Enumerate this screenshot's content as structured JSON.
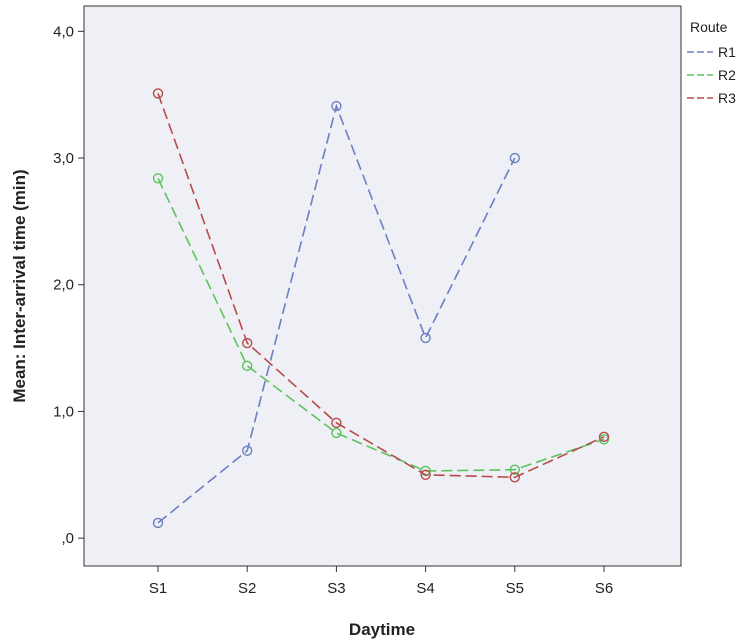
{
  "chart_data": {
    "type": "line",
    "xlabel": "Daytime",
    "ylabel": "Mean: Inter-arrival time (min)",
    "categories": [
      "S1",
      "S2",
      "S3",
      "S4",
      "S5",
      "S6"
    ],
    "ylim": [
      -0.22,
      4.2
    ],
    "yticks": [
      {
        "value": 0,
        "label": ",0"
      },
      {
        "value": 1,
        "label": "1,0"
      },
      {
        "value": 2,
        "label": "2,0"
      },
      {
        "value": 3,
        "label": "3,0"
      },
      {
        "value": 4,
        "label": "4,0"
      }
    ],
    "grid": false,
    "legend": {
      "title": "Route",
      "position": "right"
    },
    "plot_background": "#eef0f5",
    "series": [
      {
        "name": "R1",
        "color": "#6b7fc4",
        "values": [
          0.12,
          0.69,
          3.41,
          1.58,
          3.0,
          null
        ]
      },
      {
        "name": "R2",
        "color": "#5cc45c",
        "values": [
          2.84,
          1.36,
          0.83,
          0.53,
          0.54,
          0.78
        ]
      },
      {
        "name": "R3",
        "color": "#b84a4a",
        "values": [
          3.51,
          1.54,
          0.91,
          0.5,
          0.48,
          0.8
        ]
      }
    ]
  }
}
